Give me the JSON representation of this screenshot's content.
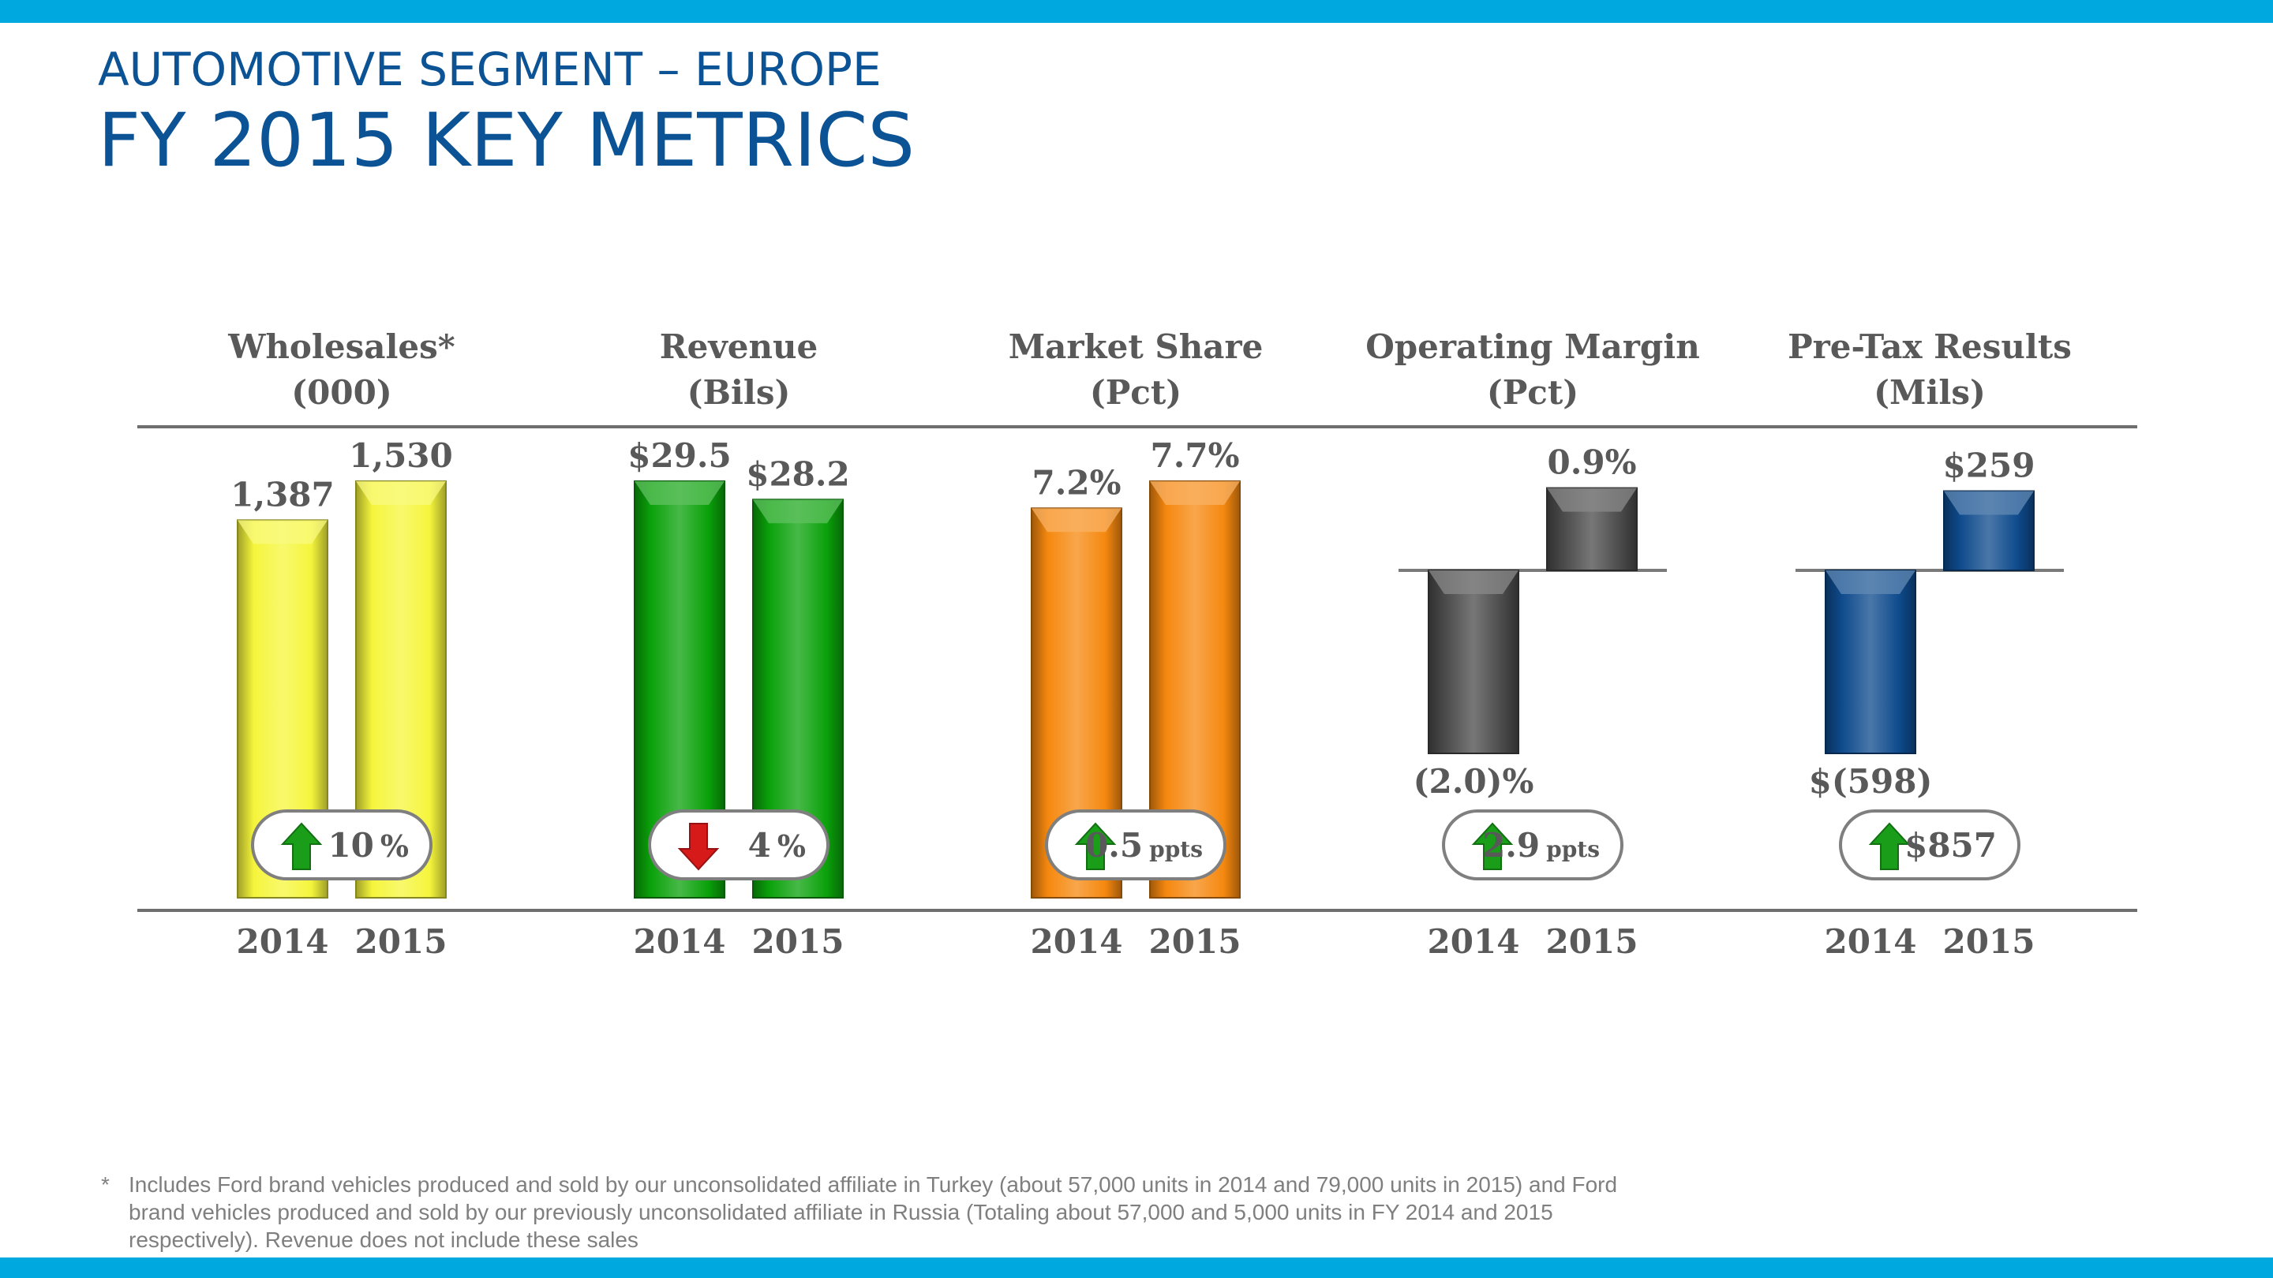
{
  "header": {
    "subtitle": "AUTOMOTIVE SEGMENT – EUROPE",
    "title": "FY 2015 KEY METRICS"
  },
  "footnote": {
    "marker": "*",
    "text": "Includes Ford brand vehicles produced and sold by our unconsolidated affiliate in Turkey (about 57,000 units in 2014 and 79,000 units in 2015) and Ford brand vehicles produced and sold by our previously unconsolidated affiliate in Russia (Totaling about 57,000 and 5,000 units in FY 2014 and 2015 respectively).  Revenue does not include these sales"
  },
  "colors": {
    "brand_blue": "#0b5394",
    "accent_bar": "#00a8e0",
    "label_gray": "#595959",
    "up_arrow": "#1a9e1a",
    "down_arrow": "#d61a1a"
  },
  "chart_data": [
    {
      "type": "bar",
      "title_line1": "Wholesales*",
      "title_line2": "(000)",
      "categories": [
        "2014",
        "2015"
      ],
      "values": [
        1387,
        1530
      ],
      "data_labels": [
        "1,387",
        "1,530"
      ],
      "bar_color": "#f5f53c",
      "change": {
        "direction": "up",
        "value": "10",
        "unit": "%"
      }
    },
    {
      "type": "bar",
      "title_line1": "Revenue",
      "title_line2": "(Bils)",
      "categories": [
        "2014",
        "2015"
      ],
      "values": [
        29.5,
        28.2
      ],
      "data_labels": [
        "$29.5",
        "$28.2"
      ],
      "bar_color": "#0aa10a",
      "change": {
        "direction": "down",
        "value": "4",
        "unit": "%"
      }
    },
    {
      "type": "bar",
      "title_line1": "Market Share",
      "title_line2": "(Pct)",
      "categories": [
        "2014",
        "2015"
      ],
      "values": [
        7.2,
        7.7
      ],
      "data_labels": [
        "7.2%",
        "7.7%"
      ],
      "bar_color": "#f5880f",
      "change": {
        "direction": "up",
        "value": "0.5",
        "unit": "ppts"
      }
    },
    {
      "type": "bar",
      "title_line1": "Operating Margin",
      "title_line2": "(Pct)",
      "categories": [
        "2014",
        "2015"
      ],
      "values": [
        -2.0,
        0.9
      ],
      "data_labels": [
        "(2.0)%",
        "0.9%"
      ],
      "bar_color": "#4a4a4a",
      "change": {
        "direction": "up",
        "value": "2.9",
        "unit": "ppts"
      }
    },
    {
      "type": "bar",
      "title_line1": "Pre-Tax Results",
      "title_line2": "(Mils)",
      "categories": [
        "2014",
        "2015"
      ],
      "values": [
        -598,
        259
      ],
      "data_labels": [
        "$(598)",
        "$259"
      ],
      "bar_color": "#0e4a8c",
      "change": {
        "direction": "up",
        "value": "$857",
        "unit": ""
      }
    }
  ]
}
